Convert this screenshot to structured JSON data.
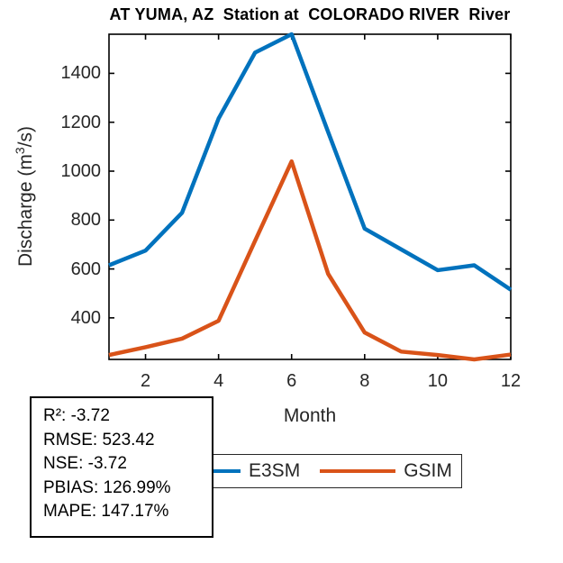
{
  "title": "AT YUMA, AZ  Station at  COLORADO RIVER  River",
  "ylabel_parts": {
    "pre": "Discharge (m",
    "sup": "3",
    "post": "/s)"
  },
  "axis_color": "#262626",
  "chart_data": {
    "type": "line",
    "title": "AT YUMA, AZ  Station at  COLORADO RIVER  River",
    "xlabel": "Month",
    "ylabel": "Discharge (m³/s)",
    "x": [
      1,
      2,
      3,
      4,
      5,
      6,
      7,
      8,
      9,
      10,
      11,
      12
    ],
    "series": [
      {
        "name": "E3SM",
        "color": "#0072BD",
        "values": [
          615,
          675,
          830,
          1215,
          1485,
          1560,
          1160,
          765,
          680,
          595,
          615,
          515
        ]
      },
      {
        "name": "GSIM",
        "color": "#D95319",
        "values": [
          248,
          280,
          315,
          388,
          715,
          1040,
          580,
          340,
          262,
          248,
          230,
          250
        ]
      }
    ],
    "xlim": [
      1,
      12
    ],
    "ylim": [
      230,
      1560
    ],
    "x_ticks": [
      2,
      4,
      6,
      8,
      10,
      12
    ],
    "y_ticks": [
      400,
      600,
      800,
      1000,
      1200,
      1400
    ],
    "grid": false,
    "legend_position": "below plot, bottom center",
    "annotations": [
      "R²: -3.72",
      "RMSE: 523.42",
      "NSE: -3.72",
      "PBIAS: 126.99%",
      "MAPE: 147.17%"
    ]
  },
  "stats_box": {
    "lines": [
      "R²: -3.72",
      "RMSE: 523.42",
      "NSE: -3.72",
      "PBIAS: 126.99%",
      "MAPE: 147.17%"
    ]
  },
  "legend": {
    "entries": [
      {
        "label": "E3SM",
        "color": "#0072BD"
      },
      {
        "label": "GSIM",
        "color": "#D95319"
      }
    ]
  }
}
